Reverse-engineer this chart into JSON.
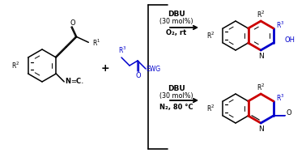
{
  "background": "#ffffff",
  "black": "#000000",
  "red": "#cc0000",
  "blue": "#0000cc",
  "condition1_line1": "DBU",
  "condition1_line2": "(30 mol%)",
  "condition1_line3": "O₂, rt",
  "condition2_line1": "DBU",
  "condition2_line2": "(30 mol%)",
  "condition2_line3": "N₂, 80 °C",
  "fig_width": 3.78,
  "fig_height": 1.89,
  "dpi": 100
}
